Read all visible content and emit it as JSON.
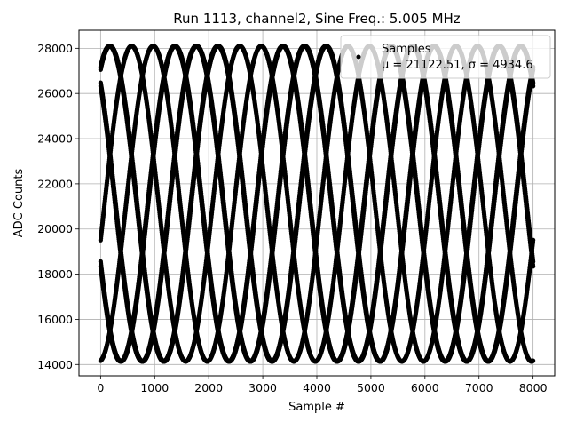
{
  "chart_data": {
    "type": "scatter",
    "title": "Run 1113, channel2, Sine Freq.: 5.005 MHz",
    "xlabel": "Sample #",
    "ylabel": "ADC Counts",
    "xlim": [
      -400,
      8400
    ],
    "ylim": [
      13500,
      28800
    ],
    "xticks": [
      0,
      1000,
      2000,
      3000,
      4000,
      5000,
      6000,
      7000,
      8000
    ],
    "yticks": [
      14000,
      16000,
      18000,
      20000,
      22000,
      24000,
      26000,
      28000
    ],
    "grid": true,
    "legend_position": "top-right",
    "marker_color": "#000000",
    "series": [
      {
        "name": "Samples",
        "stats_label": "μ = 21122.51, σ = 4934.6",
        "model": "sine",
        "mean": 21120,
        "amplitude": 6980,
        "period": 2000,
        "phases": [
          1.05,
          2.3,
          3.55,
          4.8,
          6.05,
          7.3,
          8.55,
          9.8
        ],
        "x_range": [
          0,
          8000
        ],
        "x_step": 4
      }
    ]
  }
}
